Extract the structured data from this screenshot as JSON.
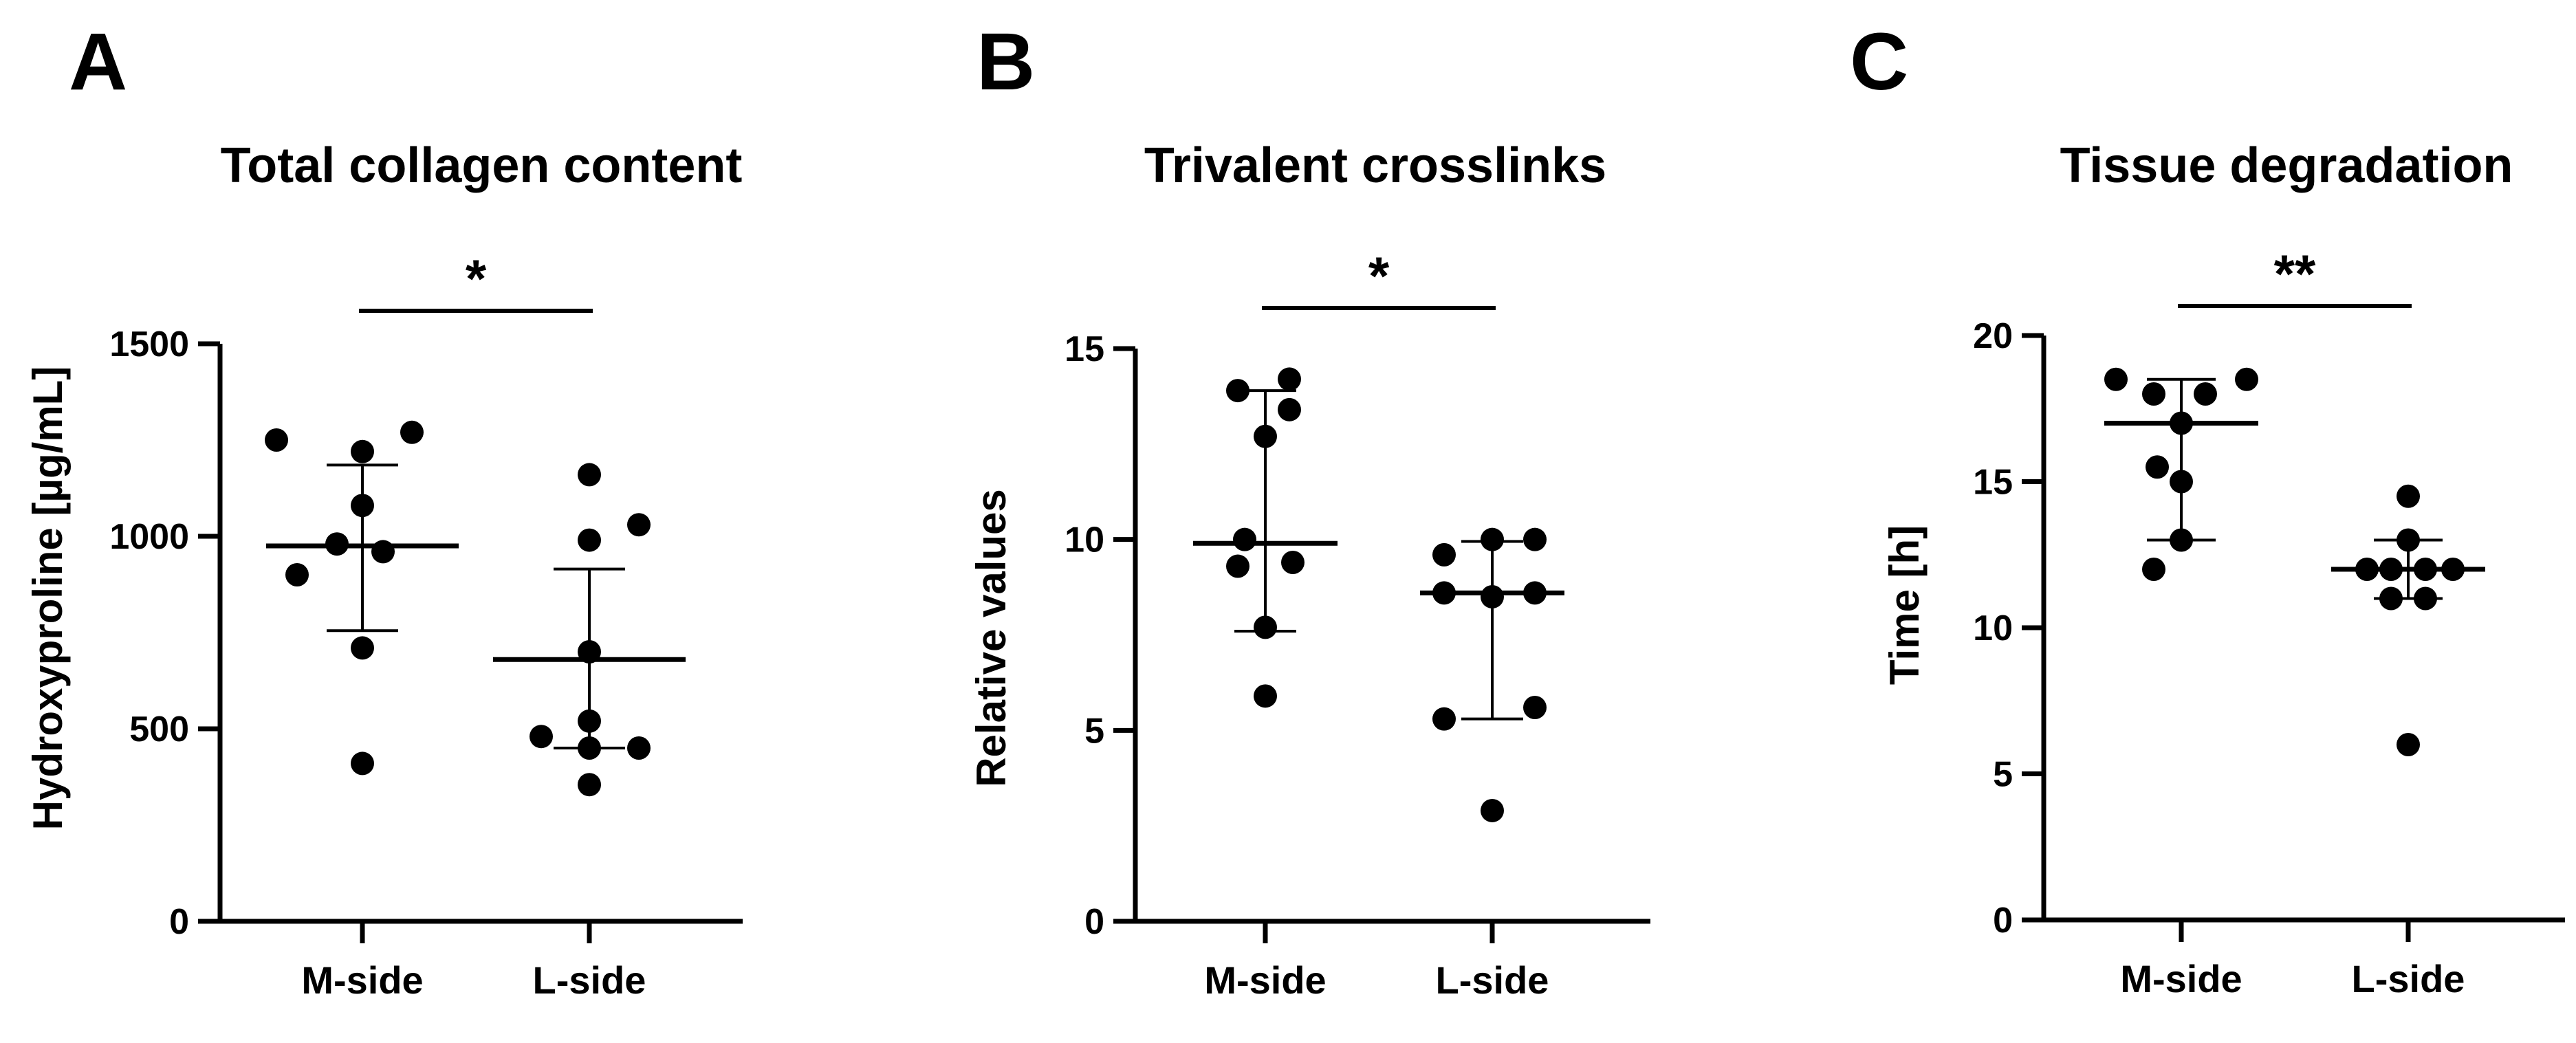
{
  "chart_data": [
    {
      "type": "scatter",
      "panel": "A",
      "title": "Total collagen content",
      "ylabel": "Hydroxyproline [µg/mL]",
      "categories": [
        "M-side",
        "L-side"
      ],
      "ylim": [
        0,
        1500
      ],
      "yticks": [
        0,
        500,
        1000,
        1500
      ],
      "series": [
        {
          "category": "M-side",
          "points": [
            1250,
            1220,
            1270,
            1080,
            980,
            900,
            960,
            710,
            410
          ],
          "mean": 975,
          "err_low": 755,
          "err_high": 1185
        },
        {
          "category": "L-side",
          "points": [
            1160,
            990,
            1030,
            700,
            520,
            480,
            450,
            450,
            355
          ],
          "mean": 680,
          "err_low": 450,
          "err_high": 915
        }
      ],
      "significance": "*"
    },
    {
      "type": "scatter",
      "panel": "B",
      "title": "Trivalent crosslinks",
      "ylabel": "Relative values",
      "categories": [
        "M-side",
        "L-side"
      ],
      "ylim": [
        0,
        15
      ],
      "yticks": [
        0,
        5,
        10,
        15
      ],
      "series": [
        {
          "category": "M-side",
          "points": [
            13.9,
            14.2,
            13.4,
            12.7,
            10.0,
            9.3,
            9.4,
            7.7,
            5.9
          ],
          "mean": 9.9,
          "err_low": 7.6,
          "err_high": 13.9
        },
        {
          "category": "L-side",
          "points": [
            9.6,
            10.0,
            10.0,
            8.6,
            8.6,
            8.5,
            5.6,
            5.3,
            2.9
          ],
          "mean": 8.6,
          "err_low": 5.3,
          "err_high": 9.95
        }
      ],
      "significance": "*"
    },
    {
      "type": "scatter",
      "panel": "C",
      "title": "Tissue degradation",
      "ylabel": "Time [h]",
      "categories": [
        "M-side",
        "L-side"
      ],
      "ylim": [
        0,
        20
      ],
      "yticks": [
        0,
        5,
        10,
        15,
        20
      ],
      "series": [
        {
          "category": "M-side",
          "points": [
            18.5,
            18.5,
            18.0,
            18.0,
            17.0,
            15.5,
            15.0,
            13.0,
            12.0
          ],
          "mean": 17.0,
          "err_low": 13.0,
          "err_high": 18.5
        },
        {
          "category": "L-side",
          "points": [
            14.5,
            13.0,
            12.0,
            12.0,
            12.0,
            12.0,
            11.0,
            11.0,
            6.0
          ],
          "mean": 12.0,
          "err_low": 11.0,
          "err_high": 13.0
        }
      ],
      "significance": "**"
    }
  ]
}
